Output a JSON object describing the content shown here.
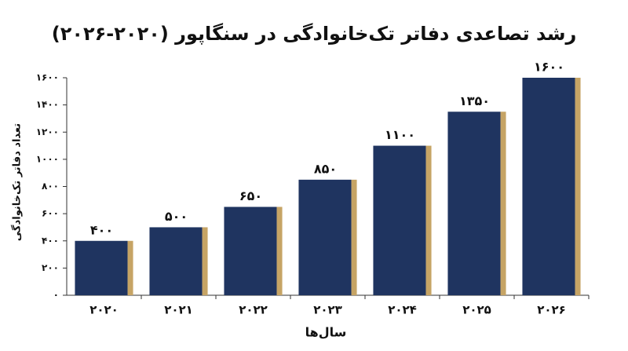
{
  "chart_data": {
    "type": "bar",
    "title": "رشد تصاعدی دفاتر تک‌خانوادگی در سنگاپور (۲۰۲۰-۲۰۲۶)",
    "y_label": "تعداد دفاتر تک‌خانوادگی",
    "x_label": "سال‌ها",
    "categories": [
      "۲۰۲۰",
      "۲۰۲۱",
      "۲۰۲۲",
      "۲۰۲۳",
      "۲۰۲۴",
      "۲۰۲۵",
      "۲۰۲۶"
    ],
    "values": [
      400,
      500,
      650,
      850,
      1100,
      1350,
      1600
    ],
    "value_labels": [
      "۴۰۰",
      "۵۰۰",
      "۶۵۰",
      "۸۵۰",
      "۱۱۰۰",
      "۱۳۵۰",
      "۱۶۰۰"
    ],
    "color": "#1f3460",
    "edge_color": "#c6a465",
    "ylim": [
      0,
      1600
    ],
    "yticks": [
      {
        "value": 0,
        "label": "۰"
      },
      {
        "value": 200,
        "label": "۲۰۰"
      },
      {
        "value": 400,
        "label": "۴۰۰"
      },
      {
        "value": 600,
        "label": "۶۰۰"
      },
      {
        "value": 800,
        "label": "۸۰۰"
      },
      {
        "value": 1000,
        "label": "۱۰۰۰"
      },
      {
        "value": 1200,
        "label": "۱۲۰۰"
      },
      {
        "value": 1400,
        "label": "۱۴۰۰"
      },
      {
        "value": 1600,
        "label": "۱۶۰۰"
      }
    ],
    "grid": false
  }
}
